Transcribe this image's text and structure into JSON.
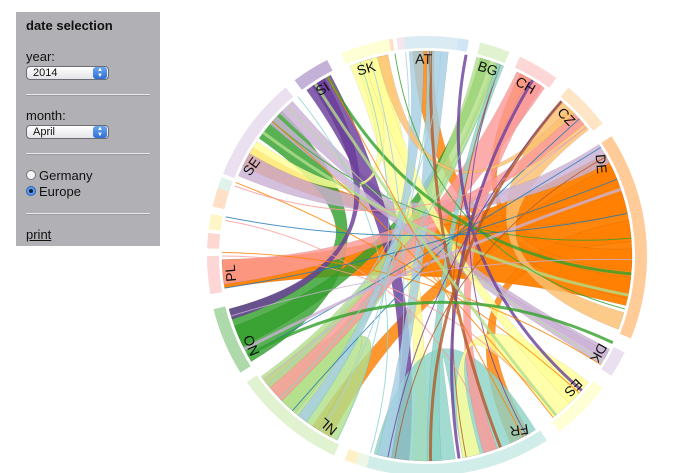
{
  "panel": {
    "title": "date selection",
    "year_label": "year:",
    "year_value": "2014",
    "month_label": "month:",
    "month_value": "April",
    "radio_germany": "Germany",
    "radio_europe": "Europe",
    "selected": "Europe",
    "print_link": "print"
  },
  "chord": {
    "countries": [
      {
        "code": "AT",
        "color": "#a6cee3"
      },
      {
        "code": "BG",
        "color": "#b2df8a"
      },
      {
        "code": "CH",
        "color": "#fb9a99"
      },
      {
        "code": "CZ",
        "color": "#fdbf6f"
      },
      {
        "code": "DE",
        "color": "#ff7f00"
      },
      {
        "code": "DK",
        "color": "#cab2d6"
      },
      {
        "code": "ES",
        "color": "#ffff99"
      },
      {
        "code": "FR",
        "color": "#8dd3c7"
      },
      {
        "code": "NL",
        "color": "#b2df8a"
      },
      {
        "code": "NO",
        "color": "#33a02c"
      },
      {
        "code": "PL",
        "color": "#fb9a99"
      },
      {
        "code": "SE",
        "color": "#cab2d6"
      },
      {
        "code": "SI",
        "color": "#6a3d9a"
      },
      {
        "code": "SK",
        "color": "#ffff99"
      }
    ]
  }
}
